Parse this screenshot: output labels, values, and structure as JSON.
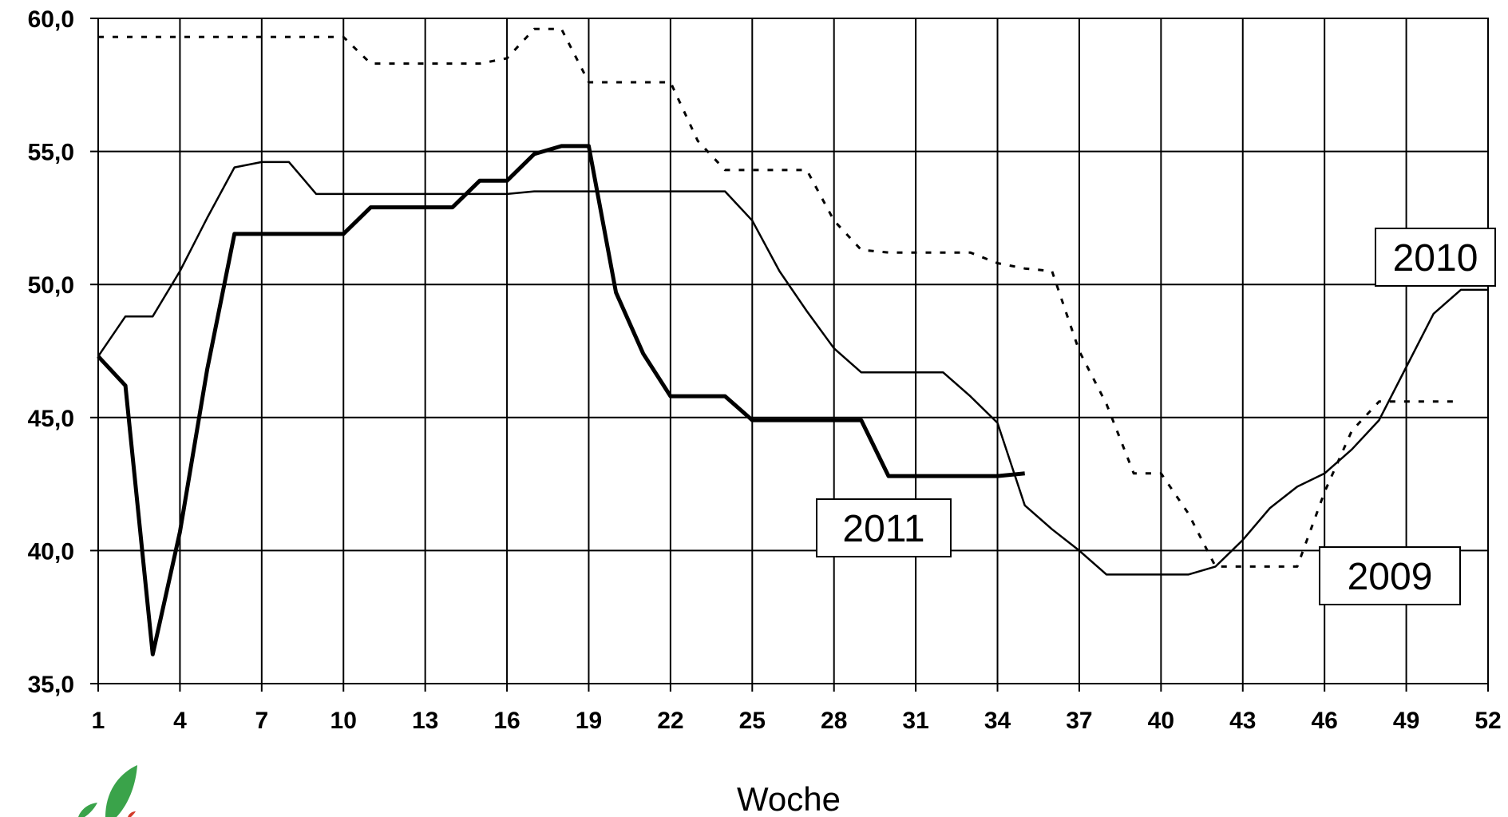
{
  "chart_data": {
    "type": "line",
    "xlabel": "Woche",
    "ylabel": "",
    "xlim": [
      1,
      52
    ],
    "ylim": [
      35,
      60
    ],
    "xticks": [
      "1",
      "4",
      "7",
      "10",
      "13",
      "16",
      "19",
      "22",
      "25",
      "28",
      "31",
      "34",
      "37",
      "40",
      "43",
      "46",
      "49",
      "52"
    ],
    "yticks": [
      "35,0",
      "40,0",
      "45,0",
      "50,0",
      "55,0",
      "60,0"
    ],
    "grid": true,
    "series": [
      {
        "name": "2009",
        "style": "dotted",
        "color": "#000000",
        "x": [
          1,
          10,
          11,
          12,
          13,
          14,
          15,
          16,
          17,
          18,
          19,
          20,
          21,
          22,
          23,
          24,
          25,
          26,
          27,
          28,
          29,
          30,
          31,
          32,
          33,
          34,
          35,
          36,
          37,
          38,
          39,
          40,
          41,
          42,
          43,
          44,
          45,
          46,
          47,
          48,
          49,
          50,
          51
        ],
        "y": [
          59.3,
          59.3,
          58.3,
          58.3,
          58.3,
          58.3,
          58.3,
          58.5,
          59.6,
          59.6,
          57.6,
          57.6,
          57.6,
          57.6,
          55.4,
          54.3,
          54.3,
          54.3,
          54.3,
          52.4,
          51.3,
          51.2,
          51.2,
          51.2,
          51.2,
          50.8,
          50.6,
          50.5,
          47.5,
          45.5,
          42.9,
          42.9,
          41.4,
          39.4,
          39.4,
          39.4,
          39.4,
          42.2,
          44.5,
          45.6,
          45.6,
          45.6,
          45.6
        ]
      },
      {
        "name": "2010",
        "style": "thin",
        "color": "#000000",
        "x": [
          1,
          2,
          3,
          4,
          5,
          6,
          7,
          8,
          9,
          10,
          11,
          12,
          13,
          14,
          15,
          16,
          17,
          18,
          19,
          20,
          21,
          22,
          23,
          24,
          25,
          26,
          27,
          28,
          29,
          30,
          31,
          32,
          33,
          34,
          35,
          36,
          37,
          38,
          39,
          40,
          41,
          42,
          43,
          44,
          45,
          46,
          47,
          48,
          49,
          50,
          51,
          52
        ],
        "y": [
          47.3,
          48.8,
          48.8,
          50.5,
          52.5,
          54.4,
          54.6,
          54.6,
          53.4,
          53.4,
          53.4,
          53.4,
          53.4,
          53.4,
          53.4,
          53.4,
          53.5,
          53.5,
          53.5,
          53.5,
          53.5,
          53.5,
          53.5,
          53.5,
          52.4,
          50.5,
          49.0,
          47.6,
          46.7,
          46.7,
          46.7,
          46.7,
          45.8,
          44.8,
          41.7,
          40.8,
          40.0,
          39.1,
          39.1,
          39.1,
          39.1,
          39.4,
          40.4,
          41.6,
          42.4,
          42.9,
          43.8,
          44.9,
          46.9,
          48.9,
          49.8,
          49.8
        ]
      },
      {
        "name": "2011",
        "style": "thick",
        "color": "#000000",
        "x": [
          1,
          2,
          3,
          4,
          5,
          6,
          7,
          8,
          9,
          10,
          11,
          12,
          13,
          14,
          15,
          16,
          17,
          18,
          19,
          20,
          21,
          22,
          23,
          24,
          25,
          26,
          27,
          28,
          29,
          30,
          31,
          32,
          33,
          34,
          35
        ],
        "y": [
          47.3,
          46.2,
          36.1,
          40.7,
          46.8,
          51.9,
          51.9,
          51.9,
          51.9,
          51.9,
          52.9,
          52.9,
          52.9,
          52.9,
          53.9,
          53.9,
          54.9,
          55.2,
          55.2,
          49.7,
          47.4,
          45.8,
          45.8,
          45.8,
          44.9,
          44.9,
          44.9,
          44.9,
          44.9,
          42.8,
          42.8,
          42.8,
          42.8,
          42.8,
          42.9
        ]
      }
    ],
    "annotations": [
      {
        "text": "2010",
        "series": "2010"
      },
      {
        "text": "2011",
        "series": "2011"
      },
      {
        "text": "2009",
        "series": "2009"
      }
    ]
  }
}
